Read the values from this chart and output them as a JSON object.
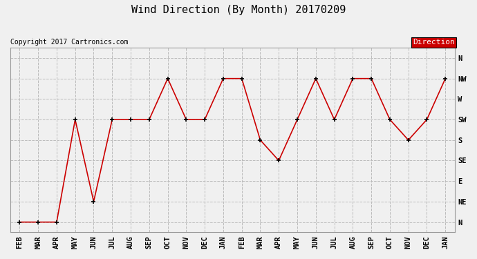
{
  "title": "Wind Direction (By Month) 20170209",
  "copyright": "Copyright 2017 Cartronics.com",
  "x_labels": [
    "FEB",
    "MAR",
    "APR",
    "MAY",
    "JUN",
    "JUL",
    "AUG",
    "SEP",
    "OCT",
    "NOV",
    "DEC",
    "JAN",
    "FEB",
    "MAR",
    "APR",
    "MAY",
    "JUN",
    "JUL",
    "AUG",
    "SEP",
    "OCT",
    "NOV",
    "DEC",
    "JAN"
  ],
  "y_labels": [
    "N",
    "NE",
    "E",
    "SE",
    "S",
    "SW",
    "W",
    "NW",
    "N"
  ],
  "y_values": [
    0,
    1,
    2,
    3,
    4,
    5,
    6,
    7,
    8
  ],
  "direction_values": [
    0,
    0,
    0,
    5,
    1,
    5,
    5,
    5,
    7,
    5,
    5,
    7,
    7,
    4,
    3,
    5,
    7,
    5,
    7,
    7,
    5,
    4,
    5,
    7
  ],
  "line_color": "#cc0000",
  "marker_color": "#000000",
  "bg_color": "#f0f0f0",
  "grid_color": "#bbbbbb",
  "legend_label": "Direction",
  "legend_bg": "#cc0000",
  "legend_text_color": "#ffffff",
  "title_fontsize": 11,
  "copyright_fontsize": 7,
  "axis_fontsize": 7.5,
  "fig_width": 6.9,
  "fig_height": 3.75,
  "fig_dpi": 100
}
